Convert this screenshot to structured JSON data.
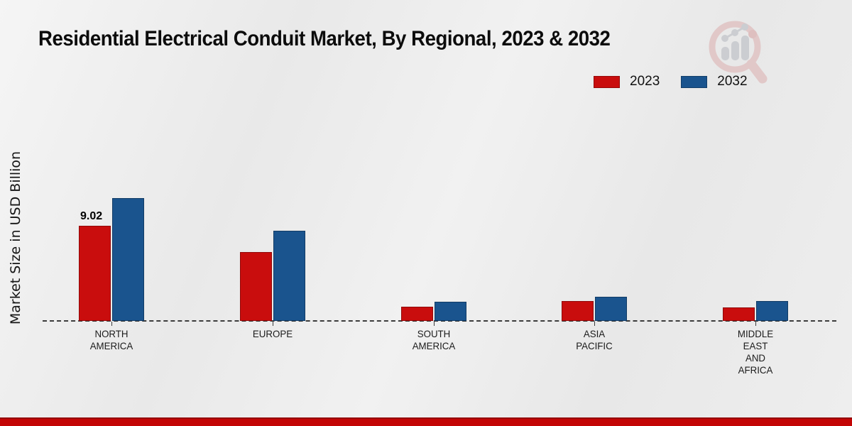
{
  "page": {
    "title": "Residential Electrical Conduit Market, By Regional, 2023 & 2032"
  },
  "y_axis_label": "Market Size in USD Billion",
  "legend": {
    "items": [
      {
        "label": "2023",
        "color": "#c90d0d"
      },
      {
        "label": "2032",
        "color": "#1a548e"
      }
    ]
  },
  "chart_data": {
    "type": "bar",
    "title": "Residential Electrical Conduit Market, By Regional, 2023 & 2032",
    "categories": [
      "NORTH AMERICA",
      "EUROPE",
      "SOUTH AMERICA",
      "ASIA PACIFIC",
      "MIDDLE EAST AND AFRICA"
    ],
    "series": [
      {
        "name": "2023",
        "color": "#c90d0d",
        "values": [
          9.02,
          6.5,
          1.35,
          1.9,
          1.3
        ]
      },
      {
        "name": "2032",
        "color": "#1a548e",
        "values": [
          11.65,
          8.55,
          1.8,
          2.3,
          1.9
        ]
      }
    ],
    "xlabel": "",
    "ylabel": "Market Size in USD Billion",
    "ylim": [
      0,
      12.5
    ],
    "grid": false,
    "baseline_style": "dashed",
    "legend_position": "top-right",
    "data_labels": [
      {
        "series_index": 0,
        "category_index": 0,
        "text": "9.02"
      }
    ]
  },
  "watermark": {
    "name": "market-research-magnifier-logo"
  },
  "footer": {
    "bar_color": "#c30505"
  }
}
